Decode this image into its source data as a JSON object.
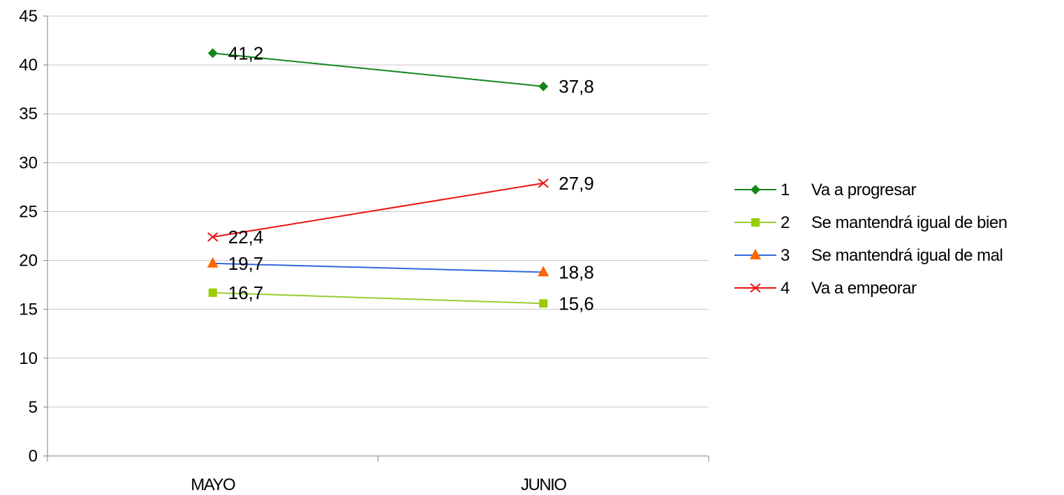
{
  "chart_data": {
    "type": "line",
    "categories": [
      "MAYO",
      "JUNIO"
    ],
    "ylim": [
      0,
      45
    ],
    "yticks": [
      0,
      5,
      10,
      15,
      20,
      25,
      30,
      35,
      40,
      45
    ],
    "grid": true,
    "legend_position": "right",
    "series": [
      {
        "num": "1",
        "name": "Va a progresar",
        "values": [
          41.2,
          37.8
        ],
        "labels": [
          "41,2",
          "37,8"
        ],
        "color": "#15861C",
        "marker": "diamond"
      },
      {
        "num": "2",
        "name": "Se mantendrá igual de bien",
        "values": [
          16.7,
          15.6
        ],
        "labels": [
          "16,7",
          "15,6"
        ],
        "color": "#9ACD32",
        "marker": "square",
        "marker_color": "#99CC00"
      },
      {
        "num": "3",
        "name": "Se mantendrá igual de mal",
        "values": [
          19.7,
          18.8
        ],
        "labels": [
          "19,7",
          "18,8"
        ],
        "color": "#3366DD",
        "marker": "triangle",
        "marker_color": "#FF6600"
      },
      {
        "num": "4",
        "name": "Va a empeorar",
        "values": [
          22.4,
          27.9
        ],
        "labels": [
          "22,4",
          "27,9"
        ],
        "color": "#EE1111",
        "marker": "x"
      }
    ]
  }
}
